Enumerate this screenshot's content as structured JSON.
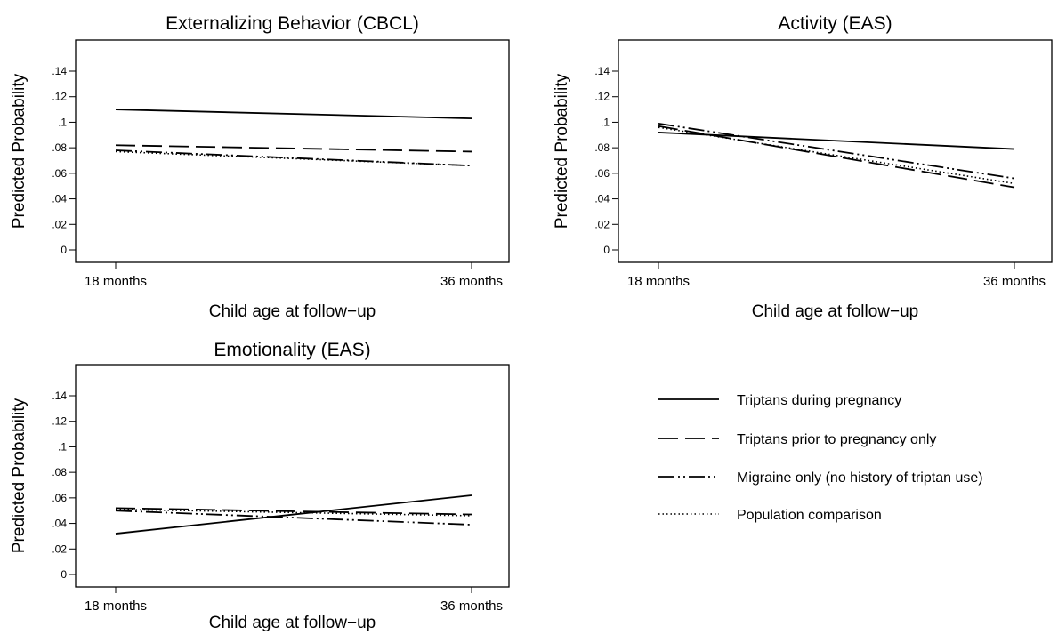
{
  "series_styles": {
    "Triptans during pregnancy": {
      "stroke": "#000000",
      "dash": "",
      "width": 1.8
    },
    "Triptans prior to pregnancy only": {
      "stroke": "#000000",
      "dash": "22 8",
      "width": 1.8
    },
    "Migraine only (no history of triptan use)": {
      "stroke": "#000000",
      "dash": "18 4 2 4 2 4",
      "width": 1.8
    },
    "Population comparison": {
      "stroke": "#000000",
      "dash": "1.5 3",
      "width": 1.6
    }
  },
  "legend": [
    "Triptans during pregnancy",
    "Triptans prior to pregnancy only",
    "Migraine only (no history of triptan use)",
    "Population comparison"
  ],
  "chart_data": [
    {
      "type": "line",
      "title": "Externalizing Behavior (CBCL)",
      "xlabel": "Child age at follow−up",
      "ylabel": "Predicted Probability",
      "categories": [
        "18 months",
        "36 months"
      ],
      "ylim": [
        0,
        0.14
      ],
      "yticks": [
        "0",
        ".02",
        ".04",
        ".06",
        ".08",
        ".1",
        ".12",
        ".14"
      ],
      "grid": false,
      "series": [
        {
          "name": "Triptans during pregnancy",
          "values": [
            0.11,
            0.103
          ]
        },
        {
          "name": "Triptans prior to pregnancy only",
          "values": [
            0.082,
            0.077
          ]
        },
        {
          "name": "Migraine only (no history of triptan use)",
          "values": [
            0.078,
            0.066
          ]
        },
        {
          "name": "Population comparison",
          "values": [
            0.077,
            0.066
          ]
        }
      ]
    },
    {
      "type": "line",
      "title": "Activity (EAS)",
      "xlabel": "Child age at follow−up",
      "ylabel": "Predicted Probability",
      "categories": [
        "18 months",
        "36 months"
      ],
      "ylim": [
        0,
        0.14
      ],
      "yticks": [
        "0",
        ".02",
        ".04",
        ".06",
        ".08",
        ".1",
        ".12",
        ".14"
      ],
      "grid": false,
      "series": [
        {
          "name": "Triptans during pregnancy",
          "values": [
            0.092,
            0.079
          ]
        },
        {
          "name": "Triptans prior to pregnancy only",
          "values": [
            0.097,
            0.049
          ]
        },
        {
          "name": "Migraine only (no history of triptan use)",
          "values": [
            0.099,
            0.056
          ]
        },
        {
          "name": "Population comparison",
          "values": [
            0.096,
            0.052
          ]
        }
      ]
    },
    {
      "type": "line",
      "title": "Emotionality (EAS)",
      "xlabel": "Child age at follow−up",
      "ylabel": "Predicted Probability",
      "categories": [
        "18 months",
        "36 months"
      ],
      "ylim": [
        0,
        0.14
      ],
      "yticks": [
        "0",
        ".02",
        ".04",
        ".06",
        ".08",
        ".1",
        ".12",
        ".14"
      ],
      "grid": false,
      "series": [
        {
          "name": "Triptans during pregnancy",
          "values": [
            0.032,
            0.062
          ]
        },
        {
          "name": "Triptans prior to pregnancy only",
          "values": [
            0.052,
            0.047
          ]
        },
        {
          "name": "Migraine only (no history of triptan use)",
          "values": [
            0.05,
            0.039
          ]
        },
        {
          "name": "Population comparison",
          "values": [
            0.051,
            0.046
          ]
        }
      ]
    }
  ]
}
